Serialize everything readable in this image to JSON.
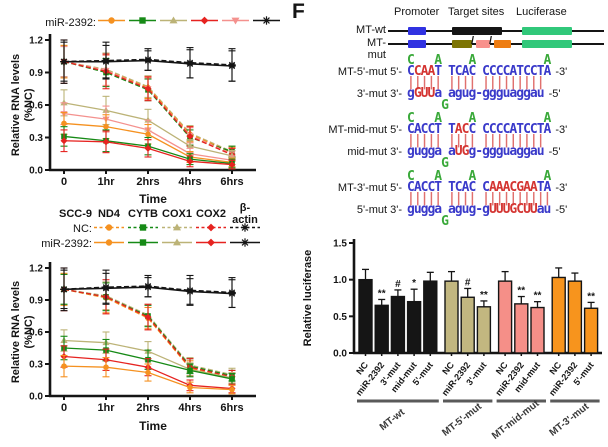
{
  "panel_label": "F",
  "colors": {
    "box_blue": "#3032E1",
    "box_black": "#151515",
    "box_green": "#31C87A",
    "box_olive": "#7D7504",
    "box_pink": "#F8918C",
    "box_orange": "#EE7D12",
    "seq_blue": "#3A3ACA",
    "seq_red": "#D43532",
    "seq_green": "#3AA93A",
    "pair_red": "#E0706E",
    "axis_black": "#151515",
    "group_line_gray": "#5A5A5A",
    "line_orange": "#F59120",
    "line_green": "#168A16",
    "line_tan": "#BCB377",
    "line_red": "#E62320",
    "line_pink": "#F4918E",
    "line_black": "#151515",
    "bar_black": "#151515",
    "bar_tan": "#C2B780",
    "bar_pink": "#F58F88",
    "bar_orange": "#F7941D"
  },
  "top_legend": {
    "label": "miR-2392:",
    "markers": [
      {
        "shape": "circle",
        "color": "#F59120"
      },
      {
        "shape": "square",
        "color": "#168A16"
      },
      {
        "shape": "triangle",
        "color": "#BCB377"
      },
      {
        "shape": "diamond",
        "color": "#E62320"
      },
      {
        "shape": "triangle-down",
        "color": "#F4918E"
      },
      {
        "shape": "star",
        "color": "#151515"
      }
    ]
  },
  "mid_legend": {
    "cell_line": "SCC-9",
    "genes": [
      "ND4",
      "CYTB",
      "COX1",
      "COX2",
      "β-actin"
    ],
    "rows": [
      {
        "label": "NC:",
        "dashed": true
      },
      {
        "label": "miR-2392:",
        "dashed": false
      }
    ],
    "markers": [
      {
        "shape": "circle",
        "color": "#F59120"
      },
      {
        "shape": "square",
        "color": "#168A16"
      },
      {
        "shape": "triangle",
        "color": "#BCB377"
      },
      {
        "shape": "diamond",
        "color": "#E62320"
      },
      {
        "shape": "star",
        "color": "#151515"
      }
    ]
  },
  "diagram": {
    "columns": [
      "Promoter",
      "Target sites",
      "Luciferase"
    ],
    "rows": [
      {
        "label": "MT-wt"
      },
      {
        "label": "MT-mut"
      }
    ],
    "separator": "/"
  },
  "sequences": [
    {
      "label_top": "MT-5'-mut 5'-",
      "end_top": "-3'",
      "top": [
        [
          "C",
          "b"
        ],
        [
          "CAA",
          "r"
        ],
        [
          "T",
          "b"
        ],
        [
          " ",
          "b"
        ],
        [
          "TCAC",
          "b"
        ],
        [
          " ",
          "b"
        ],
        [
          "CCCCATCCTA",
          "b"
        ]
      ],
      "pairs": "||||| |||| |||||||||",
      "label_bot": "3'-mut 3'-",
      "end_bot": "-5'",
      "bot": [
        [
          "g",
          "b"
        ],
        [
          "GUU",
          "r"
        ],
        [
          "a",
          "b"
        ],
        [
          " ",
          "b"
        ],
        [
          "agug",
          "b"
        ],
        [
          "-",
          "b"
        ],
        [
          "ggguaggau",
          "b"
        ]
      ],
      "above": "C   A    A          A",
      "below": "     G"
    },
    {
      "label_top": "MT-mid-mut 5'-",
      "end_top": "-3'",
      "top": [
        [
          "CACCT",
          "b"
        ],
        [
          " ",
          "b"
        ],
        [
          "T",
          "b"
        ],
        [
          "AC",
          "r"
        ],
        [
          "C",
          "b"
        ],
        [
          " ",
          "b"
        ],
        [
          "CCCCATCCTA",
          "b"
        ]
      ],
      "pairs": "||||| |||| |||||||||",
      "label_bot": "mid-mut 3'-",
      "end_bot": "-5'",
      "bot": [
        [
          "gugga",
          "b"
        ],
        [
          " ",
          "b"
        ],
        [
          "a",
          "b"
        ],
        [
          "UG",
          "r"
        ],
        [
          "g",
          "b"
        ],
        [
          "-",
          "b"
        ],
        [
          "ggguaggau",
          "b"
        ]
      ],
      "above": "C   A    A          A",
      "below": "     G"
    },
    {
      "label_top": "MT-3'-mut 5'-",
      "end_top": "-3'",
      "top": [
        [
          "CACCT",
          "b"
        ],
        [
          " ",
          "b"
        ],
        [
          "TCAC",
          "b"
        ],
        [
          " ",
          "b"
        ],
        [
          "C",
          "b"
        ],
        [
          "AAACGAA",
          "r"
        ],
        [
          "TA",
          "b"
        ]
      ],
      "pairs": "||||| |||| ||||||||||",
      "label_bot": "5'-mut 3'-",
      "end_bot": "-5'",
      "bot": [
        [
          "gugga",
          "b"
        ],
        [
          " ",
          "b"
        ],
        [
          "agug",
          "b"
        ],
        [
          "-",
          "b"
        ],
        [
          "g",
          "b"
        ],
        [
          "UUUGCUU",
          "r"
        ],
        [
          "au",
          "b"
        ]
      ],
      "above": "C   A    A          A",
      "below": "     G"
    }
  ],
  "chart_data": [
    {
      "id": "decay_top",
      "type": "line",
      "x": [
        "0",
        "1hr",
        "2hrs",
        "4hrs",
        "6hrs"
      ],
      "xlabel": "Time",
      "ylabel": [
        "Relative RNA levels",
        "(%NC)"
      ],
      "ylim": [
        0,
        1.2
      ],
      "yticks": [
        0.0,
        0.3,
        0.6,
        0.9,
        1.2
      ],
      "grid": false,
      "legend": "miR-2392 row shown above plot",
      "series": [
        {
          "name": "NC tan",
          "color": "#BCB377",
          "dash": true,
          "marker": "triangle",
          "values": [
            1.0,
            0.93,
            0.77,
            0.34,
            0.17
          ],
          "err": [
            0.15,
            0.15,
            0.1,
            0.07,
            0.05
          ]
        },
        {
          "name": "NC orange",
          "color": "#F59120",
          "dash": true,
          "marker": "circle",
          "values": [
            1.0,
            0.92,
            0.76,
            0.33,
            0.16
          ],
          "err": [
            0.15,
            0.14,
            0.1,
            0.07,
            0.05
          ]
        },
        {
          "name": "NC green",
          "color": "#168A16",
          "dash": true,
          "marker": "square",
          "values": [
            1.0,
            0.9,
            0.74,
            0.3,
            0.17
          ],
          "err": [
            0.14,
            0.13,
            0.1,
            0.07,
            0.05
          ]
        },
        {
          "name": "NC pink",
          "color": "#F4918E",
          "dash": true,
          "marker": "triangle-down",
          "values": [
            1.0,
            0.92,
            0.75,
            0.32,
            0.15
          ],
          "err": [
            0.14,
            0.14,
            0.1,
            0.07,
            0.05
          ]
        },
        {
          "name": "NC red",
          "color": "#E62320",
          "dash": true,
          "marker": "diamond",
          "values": [
            1.0,
            0.91,
            0.75,
            0.31,
            0.14
          ],
          "err": [
            0.2,
            0.16,
            0.11,
            0.09,
            0.06
          ]
        },
        {
          "name": "miR-2392 tan",
          "color": "#BCB377",
          "dash": false,
          "marker": "triangle",
          "values": [
            0.62,
            0.55,
            0.46,
            0.22,
            0.13
          ],
          "err": [
            0.12,
            0.13,
            0.1,
            0.06,
            0.05
          ]
        },
        {
          "name": "miR-2392 pink",
          "color": "#F4918E",
          "dash": false,
          "marker": "triangle-down",
          "values": [
            0.52,
            0.47,
            0.37,
            0.15,
            0.09
          ],
          "err": [
            0.1,
            0.12,
            0.09,
            0.05,
            0.04
          ]
        },
        {
          "name": "miR-2392 orange",
          "color": "#F59120",
          "dash": false,
          "marker": "circle",
          "values": [
            0.43,
            0.4,
            0.33,
            0.12,
            0.07
          ],
          "err": [
            0.1,
            0.11,
            0.09,
            0.05,
            0.04
          ]
        },
        {
          "name": "miR-2392 green",
          "color": "#168A16",
          "dash": false,
          "marker": "square",
          "values": [
            0.31,
            0.27,
            0.22,
            0.1,
            0.06
          ],
          "err": [
            0.09,
            0.1,
            0.08,
            0.05,
            0.04
          ]
        },
        {
          "name": "miR-2392 red",
          "color": "#E62320",
          "dash": false,
          "marker": "diamond",
          "values": [
            0.27,
            0.26,
            0.2,
            0.08,
            0.05
          ],
          "err": [
            0.1,
            0.1,
            0.08,
            0.05,
            0.04
          ]
        },
        {
          "name": "NC black",
          "color": "#151515",
          "dash": true,
          "marker": "star",
          "values": [
            1.0,
            1.01,
            1.02,
            0.99,
            0.97
          ],
          "err": [
            0.2,
            0.17,
            0.1,
            0.14,
            0.15
          ]
        },
        {
          "name": "miR-2392 black",
          "color": "#151515",
          "dash": false,
          "marker": "star",
          "values": [
            1.0,
            1.0,
            1.01,
            0.98,
            0.96
          ],
          "err": [
            0.18,
            0.15,
            0.09,
            0.13,
            0.14
          ]
        }
      ]
    },
    {
      "id": "decay_scc9",
      "type": "line",
      "x": [
        "0",
        "1hr",
        "2hrs",
        "4hrs",
        "6hrs"
      ],
      "xlabel": "Time",
      "ylabel": [
        "Relative RNA levels",
        "(%NC)"
      ],
      "ylim": [
        0,
        1.2
      ],
      "yticks": [
        0.0,
        0.3,
        0.6,
        0.9,
        1.2
      ],
      "grid": false,
      "legend": "SCC-9: ND4 CYTB COX1 COX2 β-actin (NC dashed, miR-2392 solid)",
      "series": [
        {
          "name": "NC COX1",
          "color": "#BCB377",
          "dash": true,
          "marker": "triangle",
          "values": [
            1.0,
            0.94,
            0.76,
            0.29,
            0.2
          ],
          "err": [
            0.14,
            0.13,
            0.1,
            0.07,
            0.06
          ]
        },
        {
          "name": "NC ND4",
          "color": "#F59120",
          "dash": true,
          "marker": "circle",
          "values": [
            1.0,
            0.92,
            0.73,
            0.26,
            0.17
          ],
          "err": [
            0.15,
            0.14,
            0.1,
            0.07,
            0.05
          ]
        },
        {
          "name": "NC CYTB",
          "color": "#168A16",
          "dash": true,
          "marker": "square",
          "values": [
            1.0,
            0.93,
            0.75,
            0.28,
            0.19
          ],
          "err": [
            0.14,
            0.13,
            0.1,
            0.07,
            0.05
          ]
        },
        {
          "name": "NC COX2",
          "color": "#E62320",
          "dash": true,
          "marker": "diamond",
          "values": [
            1.0,
            0.93,
            0.74,
            0.27,
            0.18
          ],
          "err": [
            0.2,
            0.16,
            0.12,
            0.08,
            0.06
          ]
        },
        {
          "name": "miR-2392 COX1",
          "color": "#BCB377",
          "dash": false,
          "marker": "triangle",
          "values": [
            0.52,
            0.5,
            0.42,
            0.25,
            0.17
          ],
          "err": [
            0.1,
            0.1,
            0.09,
            0.06,
            0.05
          ]
        },
        {
          "name": "miR-2392 CYTB",
          "color": "#168A16",
          "dash": false,
          "marker": "square",
          "values": [
            0.45,
            0.43,
            0.34,
            0.24,
            0.16
          ],
          "err": [
            0.11,
            0.1,
            0.09,
            0.06,
            0.05
          ]
        },
        {
          "name": "miR-2392 COX2",
          "color": "#E62320",
          "dash": false,
          "marker": "diamond",
          "values": [
            0.37,
            0.34,
            0.27,
            0.1,
            0.07
          ],
          "err": [
            0.1,
            0.1,
            0.08,
            0.05,
            0.04
          ]
        },
        {
          "name": "miR-2392 ND4",
          "color": "#F59120",
          "dash": false,
          "marker": "circle",
          "values": [
            0.28,
            0.27,
            0.22,
            0.08,
            0.06
          ],
          "err": [
            0.1,
            0.09,
            0.08,
            0.05,
            0.04
          ]
        },
        {
          "name": "NC β-actin",
          "color": "#151515",
          "dash": true,
          "marker": "star",
          "values": [
            1.0,
            1.02,
            1.03,
            0.99,
            0.97
          ],
          "err": [
            0.2,
            0.16,
            0.1,
            0.14,
            0.14
          ]
        },
        {
          "name": "miR-2392 β-actin",
          "color": "#151515",
          "dash": false,
          "marker": "star",
          "values": [
            1.0,
            1.01,
            1.02,
            0.98,
            0.96
          ],
          "err": [
            0.18,
            0.14,
            0.09,
            0.12,
            0.13
          ]
        }
      ]
    },
    {
      "id": "luciferase",
      "type": "bar",
      "ylabel": "Relative luciferase",
      "ylim": [
        0,
        1.5
      ],
      "yticks": [
        0.0,
        0.5,
        1.0,
        1.5
      ],
      "grid": false,
      "groups": [
        {
          "label": "MT-wt",
          "color": "#151515",
          "bars": [
            {
              "label": "NC",
              "value": 1.0,
              "err": 0.14,
              "sig": ""
            },
            {
              "label": "miR-2392",
              "value": 0.65,
              "err": 0.08,
              "sig": "**"
            },
            {
              "label": "3'-mut",
              "value": 0.77,
              "err": 0.09,
              "sig": "#"
            },
            {
              "label": "mid-mut",
              "value": 0.7,
              "err": 0.17,
              "sig": "*"
            },
            {
              "label": "5'-mut",
              "value": 0.98,
              "err": 0.12,
              "sig": ""
            }
          ]
        },
        {
          "label": "MT-5'-mut",
          "color": "#C2B780",
          "bars": [
            {
              "label": "NC",
              "value": 0.98,
              "err": 0.13,
              "sig": ""
            },
            {
              "label": "miR-2392",
              "value": 0.76,
              "err": 0.12,
              "sig": "#"
            },
            {
              "label": "3'-mut",
              "value": 0.63,
              "err": 0.08,
              "sig": "**"
            }
          ]
        },
        {
          "label": "MT-mid-mut",
          "color": "#F58F88",
          "bars": [
            {
              "label": "NC",
              "value": 0.98,
              "err": 0.13,
              "sig": ""
            },
            {
              "label": "miR-2392",
              "value": 0.67,
              "err": 0.1,
              "sig": "**"
            },
            {
              "label": "mid-mut",
              "value": 0.62,
              "err": 0.08,
              "sig": "**"
            }
          ]
        },
        {
          "label": "MT-3'-mut",
          "color": "#F7941D",
          "bars": [
            {
              "label": "NC",
              "value": 1.03,
              "err": 0.13,
              "sig": ""
            },
            {
              "label": "miR-2392",
              "value": 0.98,
              "err": 0.11,
              "sig": ""
            },
            {
              "label": "5'-mut",
              "value": 0.61,
              "err": 0.08,
              "sig": "**"
            }
          ]
        }
      ]
    }
  ]
}
